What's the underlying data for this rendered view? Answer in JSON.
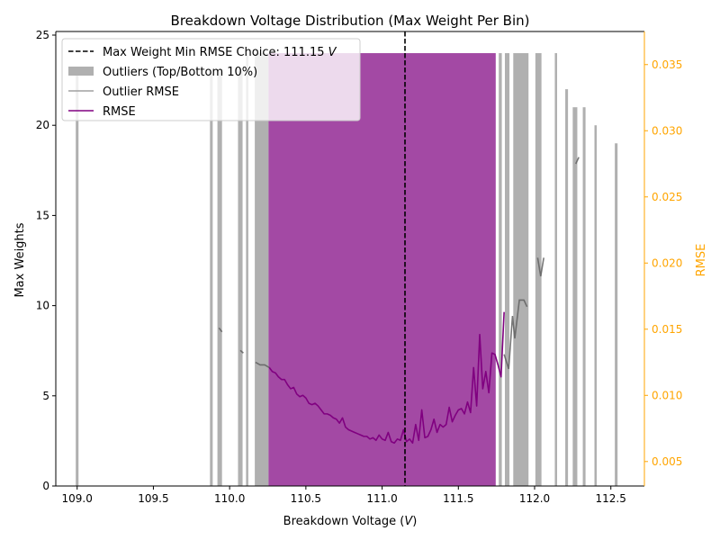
{
  "chart_data": {
    "type": "bar",
    "title": "Breakdown Voltage Distribution (Max Weight Per Bin)",
    "xlabel": "Breakdown Voltage (",
    "xlabel_unit": "V",
    "xlabel_close": ")",
    "ylabel": "Max Weights",
    "y2label": "RMSE",
    "xlim": [
      108.86,
      112.72
    ],
    "ylim": [
      0,
      25.2
    ],
    "y2lim": [
      0.00315,
      0.0375
    ],
    "x_ticks": [
      109.0,
      109.5,
      110.0,
      110.5,
      111.0,
      111.5,
      112.0,
      112.5
    ],
    "x_tick_labels": [
      "109.0",
      "109.5",
      "110.0",
      "110.5",
      "111.0",
      "111.5",
      "112.0",
      "112.5"
    ],
    "y_ticks": [
      0,
      5,
      10,
      15,
      20,
      25
    ],
    "y_tick_labels": [
      "0",
      "5",
      "10",
      "15",
      "20",
      "25"
    ],
    "y2_ticks": [
      0.005,
      0.01,
      0.015,
      0.02,
      0.025,
      0.03,
      0.035
    ],
    "y2_tick_labels": [
      "0.005",
      "0.010",
      "0.015",
      "0.020",
      "0.025",
      "0.030",
      "0.035"
    ],
    "choice": {
      "x": 111.15,
      "legend_label": "Max Weight Min RMSE Choice: 111.15 ",
      "legend_unit": "V"
    },
    "legend": [
      {
        "key": "choice",
        "label": "Max Weight Min RMSE Choice: 111.15 "
      },
      {
        "key": "outliers",
        "label": "Outliers (Top/Bottom 10%)"
      },
      {
        "key": "outlier_rmse",
        "label": "Outlier RMSE"
      },
      {
        "key": "rmse",
        "label": "RMSE"
      }
    ],
    "legend_placement": "upper-left",
    "colors": {
      "main_bar": "#a349a4",
      "outlier_bar": "#b0b0b0",
      "outlier_rmse": "#606060",
      "rmse": "#800080",
      "choice_line": "#000000",
      "right_axis": "#ffa500"
    },
    "main_block": {
      "x_start": 110.255,
      "x_end": 111.745,
      "weight": 24
    },
    "series": [
      {
        "name": "Outliers (Top/Bottom 10%)",
        "bars": [
          {
            "x": 109.0,
            "w": 0.018,
            "v": 23
          },
          {
            "x": 109.88,
            "w": 0.018,
            "v": 23
          },
          {
            "x": 109.935,
            "w": 0.03,
            "v": 23
          },
          {
            "x": 110.07,
            "w": 0.03,
            "v": 23
          },
          {
            "x": 110.115,
            "w": 0.015,
            "v": 24
          },
          {
            "x": 110.21,
            "w": 0.09,
            "v": 24
          },
          {
            "x": 111.775,
            "w": 0.02,
            "v": 24
          },
          {
            "x": 111.82,
            "w": 0.03,
            "v": 24
          },
          {
            "x": 111.91,
            "w": 0.1,
            "v": 24
          },
          {
            "x": 112.025,
            "w": 0.04,
            "v": 24
          },
          {
            "x": 112.14,
            "w": 0.015,
            "v": 24
          },
          {
            "x": 112.21,
            "w": 0.018,
            "v": 22
          },
          {
            "x": 112.265,
            "w": 0.03,
            "v": 21
          },
          {
            "x": 112.325,
            "w": 0.018,
            "v": 21
          },
          {
            "x": 112.4,
            "w": 0.015,
            "v": 20
          },
          {
            "x": 112.535,
            "w": 0.018,
            "v": 19
          }
        ]
      },
      {
        "name": "Outlier RMSE",
        "segments": [
          [
            [
              109.93,
              0.0151
            ],
            [
              109.95,
              0.0148
            ]
          ],
          [
            [
              110.07,
              0.0134
            ],
            [
              110.09,
              0.0132
            ]
          ],
          [
            [
              110.17,
              0.0125
            ],
            [
              110.2,
              0.0123
            ],
            [
              110.23,
              0.0123
            ],
            [
              110.26,
              0.0121
            ]
          ],
          [
            [
              111.8,
              0.0131
            ],
            [
              111.83,
              0.012
            ],
            [
              111.855,
              0.016
            ],
            [
              111.87,
              0.0143
            ],
            [
              111.9,
              0.0172
            ],
            [
              111.93,
              0.0172
            ],
            [
              111.95,
              0.0167
            ]
          ],
          [
            [
              112.02,
              0.0204
            ],
            [
              112.04,
              0.019
            ],
            [
              112.06,
              0.0204
            ]
          ],
          [
            [
              112.27,
              0.0275
            ],
            [
              112.29,
              0.028
            ]
          ]
        ]
      },
      {
        "name": "RMSE",
        "points": [
          [
            110.26,
            0.0121
          ],
          [
            110.28,
            0.0118
          ],
          [
            110.3,
            0.0117
          ],
          [
            110.32,
            0.0114
          ],
          [
            110.34,
            0.0112
          ],
          [
            110.36,
            0.0112
          ],
          [
            110.38,
            0.0108
          ],
          [
            110.4,
            0.0105
          ],
          [
            110.42,
            0.0106
          ],
          [
            110.44,
            0.0101
          ],
          [
            110.46,
            0.0099
          ],
          [
            110.48,
            0.01
          ],
          [
            110.5,
            0.0098
          ],
          [
            110.52,
            0.0094
          ],
          [
            110.54,
            0.0093
          ],
          [
            110.56,
            0.0094
          ],
          [
            110.58,
            0.0092
          ],
          [
            110.6,
            0.0089
          ],
          [
            110.62,
            0.0086
          ],
          [
            110.64,
            0.0086
          ],
          [
            110.66,
            0.0085
          ],
          [
            110.68,
            0.0083
          ],
          [
            110.7,
            0.0082
          ],
          [
            110.72,
            0.0079
          ],
          [
            110.74,
            0.0083
          ],
          [
            110.76,
            0.0076
          ],
          [
            110.78,
            0.0074
          ],
          [
            110.8,
            0.0073
          ],
          [
            110.82,
            0.0072
          ],
          [
            110.84,
            0.0071
          ],
          [
            110.86,
            0.007
          ],
          [
            110.88,
            0.0069
          ],
          [
            110.9,
            0.0069
          ],
          [
            110.92,
            0.0067
          ],
          [
            110.94,
            0.0068
          ],
          [
            110.96,
            0.0066
          ],
          [
            110.98,
            0.007
          ],
          [
            111.0,
            0.0067
          ],
          [
            111.02,
            0.0066
          ],
          [
            111.04,
            0.0072
          ],
          [
            111.06,
            0.0065
          ],
          [
            111.08,
            0.0064
          ],
          [
            111.1,
            0.0067
          ],
          [
            111.12,
            0.0066
          ],
          [
            111.14,
            0.0074
          ],
          [
            111.16,
            0.0065
          ],
          [
            111.18,
            0.0067
          ],
          [
            111.2,
            0.0064
          ],
          [
            111.22,
            0.0078
          ],
          [
            111.24,
            0.0066
          ],
          [
            111.26,
            0.0089
          ],
          [
            111.28,
            0.0068
          ],
          [
            111.3,
            0.0069
          ],
          [
            111.32,
            0.0074
          ],
          [
            111.34,
            0.0082
          ],
          [
            111.36,
            0.0072
          ],
          [
            111.38,
            0.0078
          ],
          [
            111.4,
            0.0076
          ],
          [
            111.42,
            0.0078
          ],
          [
            111.44,
            0.0091
          ],
          [
            111.46,
            0.008
          ],
          [
            111.48,
            0.0085
          ],
          [
            111.5,
            0.0089
          ],
          [
            111.52,
            0.009
          ],
          [
            111.54,
            0.0086
          ],
          [
            111.56,
            0.0095
          ],
          [
            111.58,
            0.0087
          ],
          [
            111.6,
            0.0121
          ],
          [
            111.62,
            0.0092
          ],
          [
            111.64,
            0.0146
          ],
          [
            111.66,
            0.0105
          ],
          [
            111.68,
            0.0118
          ],
          [
            111.7,
            0.0102
          ],
          [
            111.72,
            0.0132
          ],
          [
            111.74,
            0.0131
          ],
          [
            111.76,
            0.0123
          ],
          [
            111.78,
            0.0114
          ],
          [
            111.8,
            0.0163
          ]
        ]
      }
    ]
  }
}
